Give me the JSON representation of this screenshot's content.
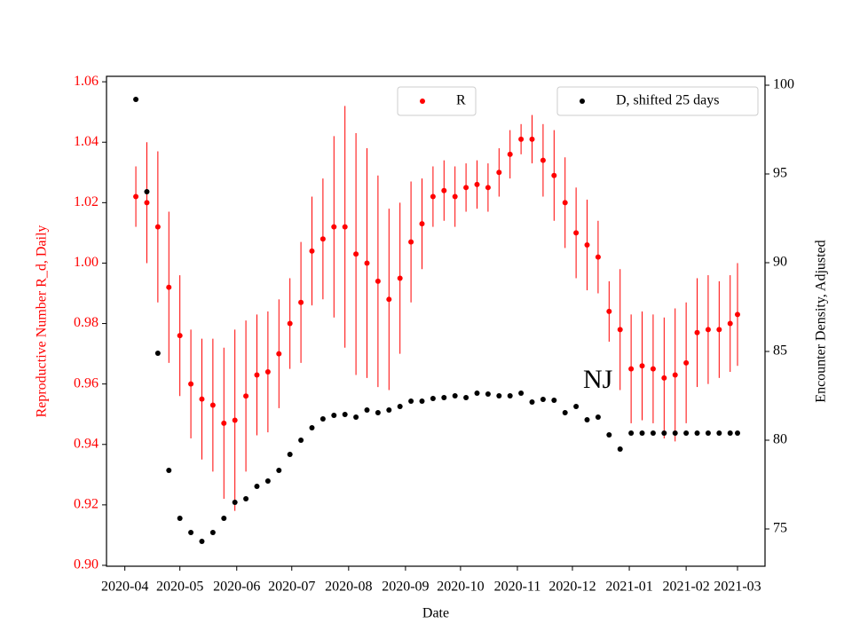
{
  "chart_data": {
    "type": "scatter",
    "xlabel": "Date",
    "ylabel": "Reproductive Number R_d, Daily",
    "y2label": "Encounter Density, Adjusted",
    "annotation": "NJ",
    "xlim": [
      -10,
      349
    ],
    "xticks": [
      {
        "value": 0,
        "label": "2020-04"
      },
      {
        "value": 30,
        "label": "2020-05"
      },
      {
        "value": 61,
        "label": "2020-06"
      },
      {
        "value": 91,
        "label": "2020-07"
      },
      {
        "value": 122,
        "label": "2020-08"
      },
      {
        "value": 153,
        "label": "2020-09"
      },
      {
        "value": 183,
        "label": "2020-10"
      },
      {
        "value": 214,
        "label": "2020-11"
      },
      {
        "value": 244,
        "label": "2020-12"
      },
      {
        "value": 275,
        "label": "2021-01"
      },
      {
        "value": 306,
        "label": "2021-02"
      },
      {
        "value": 334,
        "label": "2021-03"
      }
    ],
    "ylim": [
      0.8997,
      1.0618
    ],
    "yticks": [
      {
        "value": 0.9,
        "label": "0.90"
      },
      0.92,
      0.94,
      0.96,
      0.98,
      {
        "value": 1.0,
        "label": "1.00"
      },
      1.02,
      1.04,
      1.06
    ],
    "y2lim": [
      72.9,
      100.5
    ],
    "y2ticks": [
      75,
      80,
      85,
      90,
      95,
      100
    ],
    "x": [
      6,
      12,
      18,
      24,
      30,
      36,
      42,
      48,
      54,
      60,
      66,
      72,
      78,
      84,
      90,
      96,
      102,
      108,
      114,
      120,
      126,
      132,
      138,
      144,
      150,
      156,
      162,
      168,
      174,
      180,
      186,
      192,
      198,
      204,
      210,
      216,
      222,
      228,
      234,
      240,
      246,
      252,
      258,
      264,
      270,
      276,
      282,
      288,
      294,
      300,
      306,
      312,
      318,
      324,
      330,
      334
    ],
    "series": [
      {
        "name": "R",
        "color": "#ff0000",
        "legend": "upper center",
        "values": [
          1.022,
          1.02,
          1.012,
          0.992,
          0.976,
          0.96,
          0.955,
          0.953,
          0.947,
          0.948,
          0.956,
          0.963,
          0.964,
          0.97,
          0.98,
          0.987,
          1.004,
          1.008,
          1.012,
          1.012,
          1.003,
          1.0,
          0.994,
          0.988,
          0.995,
          1.007,
          1.013,
          1.022,
          1.024,
          1.022,
          1.025,
          1.026,
          1.025,
          1.03,
          1.036,
          1.041,
          1.041,
          1.034,
          1.029,
          1.02,
          1.01,
          1.006,
          1.002,
          0.984,
          0.978,
          0.965,
          0.966,
          0.965,
          0.962,
          0.963,
          0.967,
          0.977,
          0.978,
          0.978,
          0.98,
          0.983
        ],
        "errors": [
          0.01,
          0.02,
          0.025,
          0.025,
          0.02,
          0.018,
          0.02,
          0.022,
          0.025,
          0.03,
          0.025,
          0.02,
          0.02,
          0.018,
          0.015,
          0.02,
          0.018,
          0.02,
          0.03,
          0.04,
          0.04,
          0.038,
          0.035,
          0.03,
          0.025,
          0.02,
          0.015,
          0.01,
          0.01,
          0.01,
          0.008,
          0.008,
          0.008,
          0.008,
          0.008,
          0.005,
          0.008,
          0.012,
          0.015,
          0.015,
          0.015,
          0.015,
          0.012,
          0.01,
          0.02,
          0.018,
          0.018,
          0.018,
          0.02,
          0.022,
          0.02,
          0.018,
          0.018,
          0.016,
          0.016,
          0.017
        ]
      },
      {
        "name": "D, shifted 25 days",
        "color": "#000000",
        "axis": "y2",
        "legend": "upper right",
        "values": [
          99.2,
          94.0,
          84.9,
          78.3,
          75.6,
          74.8,
          74.3,
          74.8,
          75.6,
          76.5,
          76.7,
          77.4,
          77.7,
          78.3,
          79.2,
          80.0,
          80.7,
          81.2,
          81.4,
          81.45,
          81.3,
          81.7,
          81.55,
          81.7,
          81.9,
          82.2,
          82.2,
          82.35,
          82.4,
          82.5,
          82.4,
          82.65,
          82.6,
          82.5,
          82.5,
          82.65,
          82.15,
          82.3,
          82.25,
          81.55,
          81.9,
          81.15,
          81.3,
          80.3,
          79.5,
          80.4,
          80.4,
          80.4,
          80.4,
          80.4,
          80.4,
          80.4,
          80.4,
          80.4,
          80.4,
          80.4
        ]
      }
    ]
  }
}
